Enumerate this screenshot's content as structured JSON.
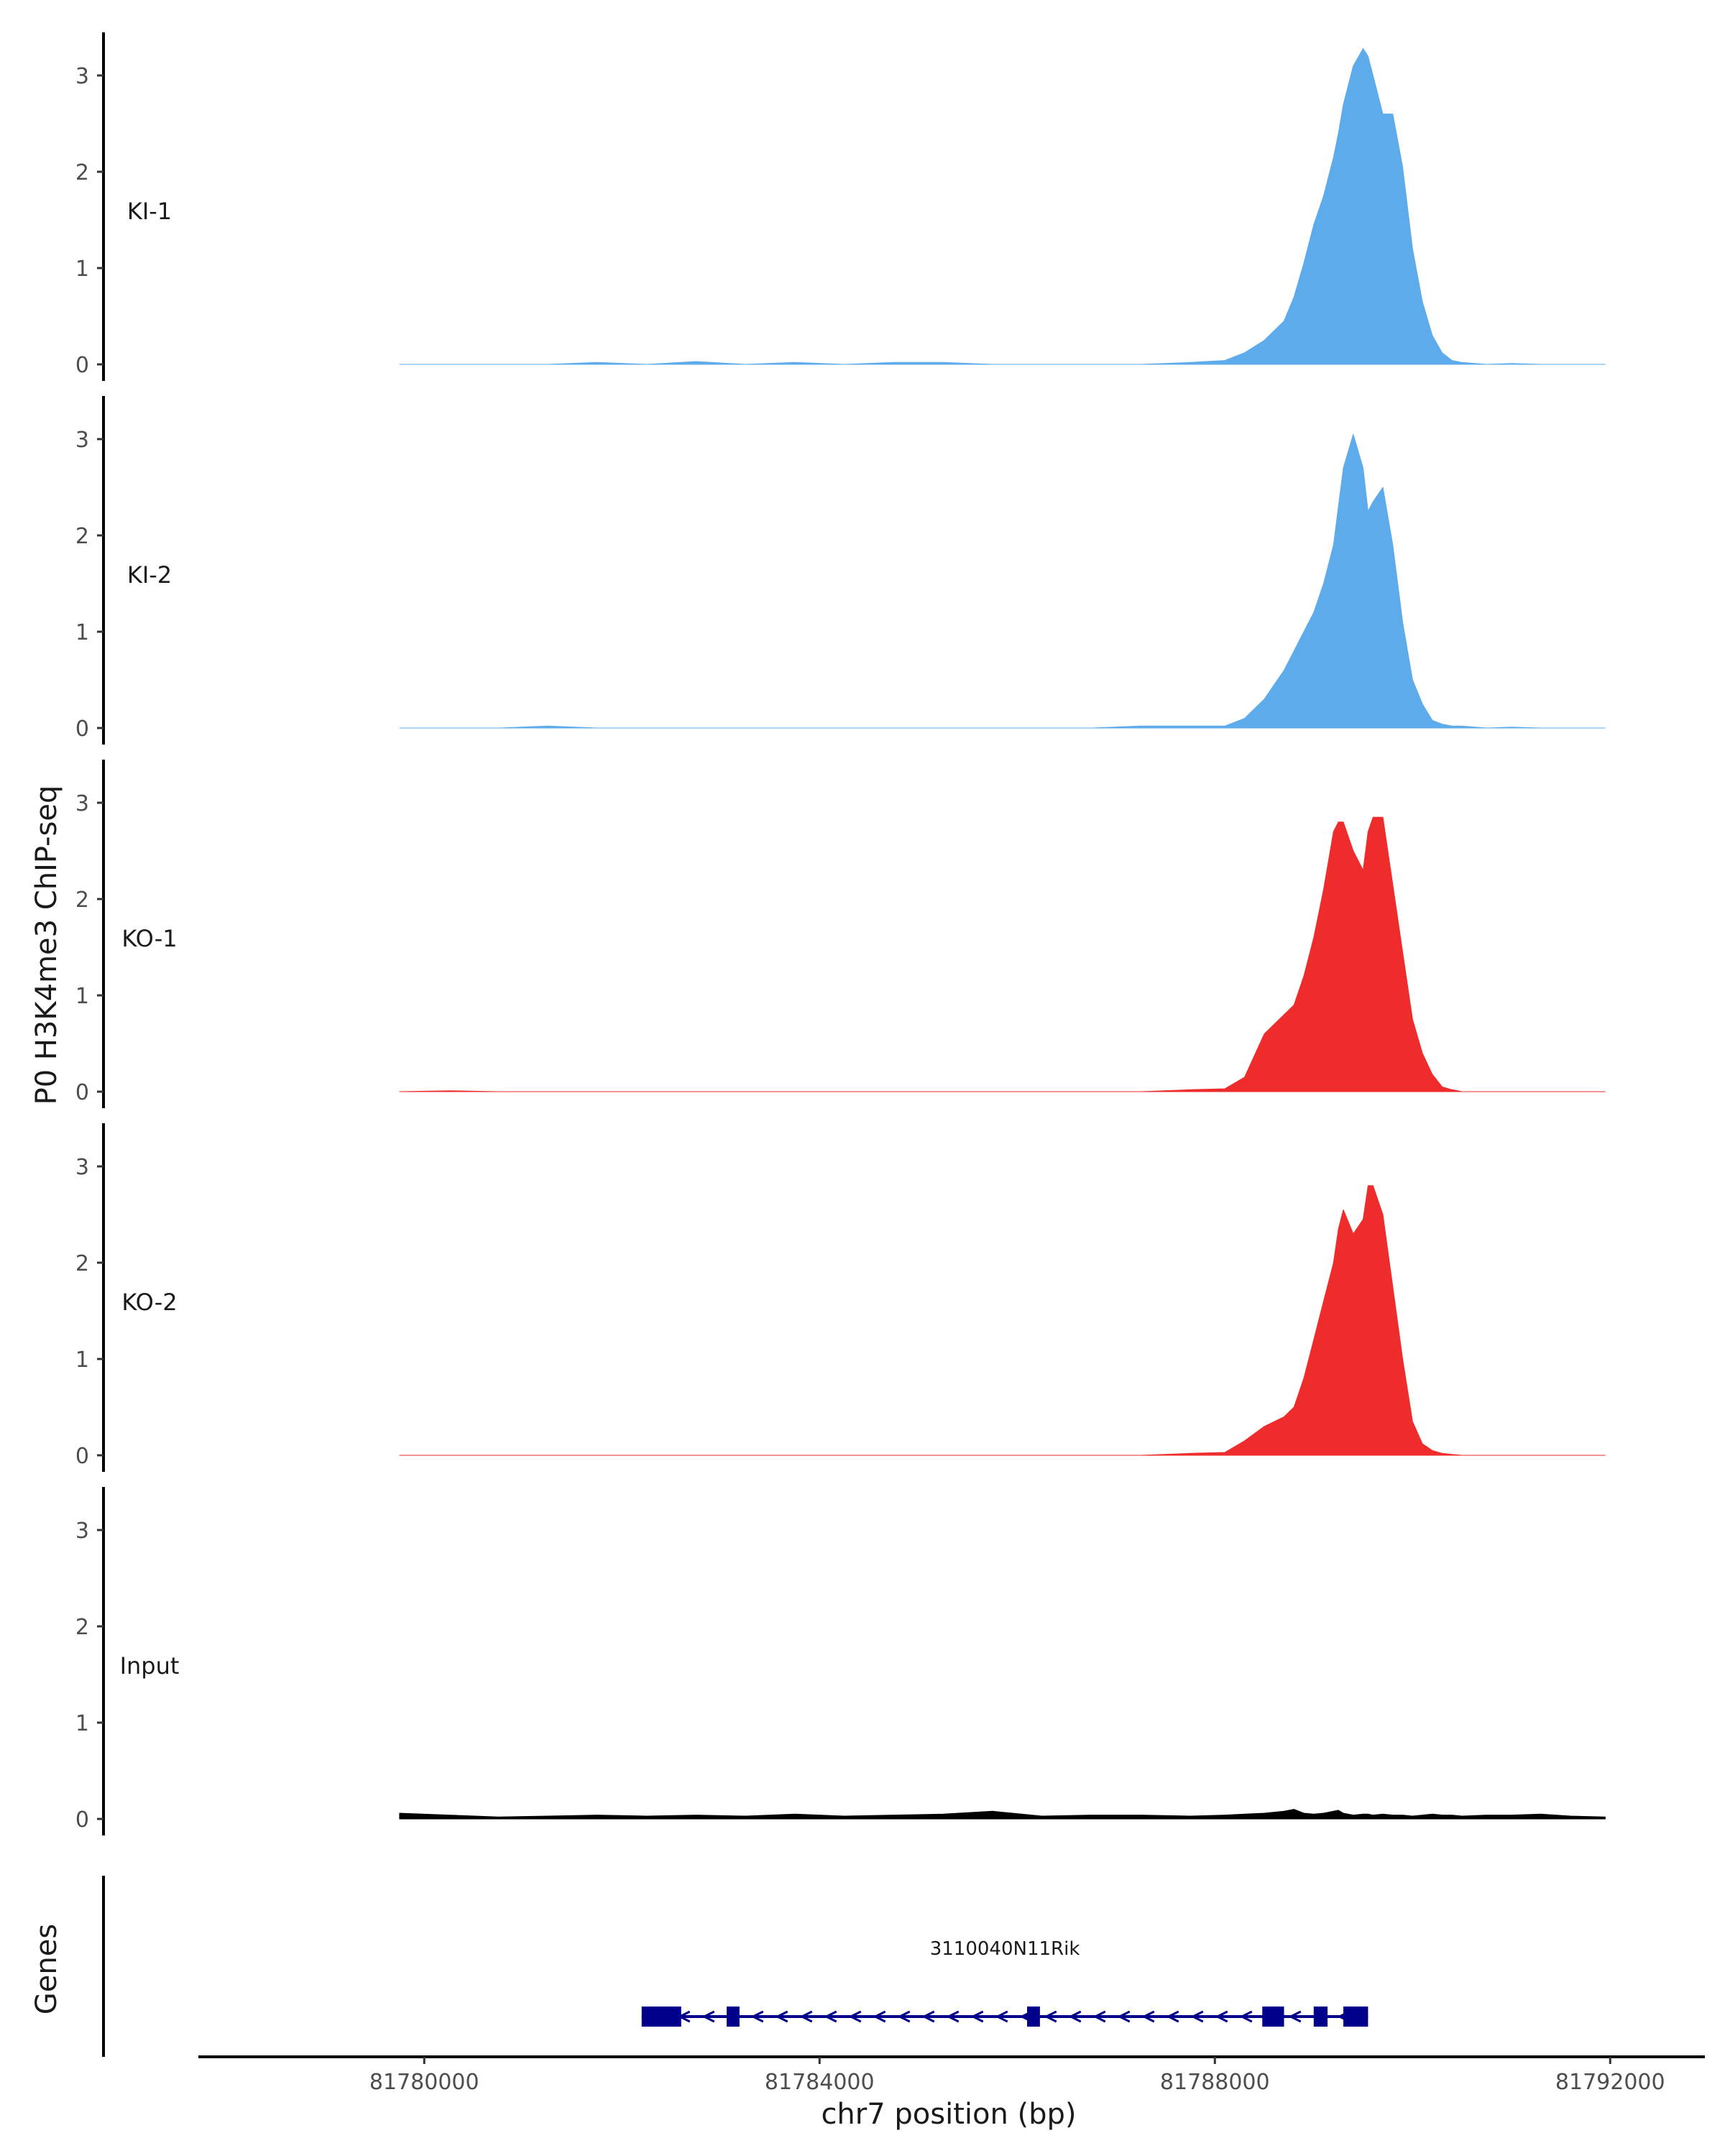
{
  "chart_data": {
    "type": "area",
    "ylabel": "P0 H3K4me3 ChIP-seq",
    "xlabel": "chr7 position (bp)",
    "gene_panel_label": "Genes",
    "xlim": [
      81777700,
      81792900
    ],
    "ylim": [
      -0.05,
      3.4
    ],
    "yticks": [
      0,
      1,
      2,
      3
    ],
    "xticks": [
      81780000,
      81784000,
      81788000,
      81792000
    ],
    "xtick_labels": [
      "81780000",
      "81784000",
      "81788000",
      "81792000"
    ],
    "grid": false,
    "series_x": [
      81779750,
      81780250,
      81780750,
      81781250,
      81781750,
      81782250,
      81782750,
      81783250,
      81783750,
      81784250,
      81784750,
      81785250,
      81785750,
      81786250,
      81786750,
      81787250,
      81787750,
      81788100,
      81788300,
      81788500,
      81788700,
      81788800,
      81788900,
      81789000,
      81789100,
      81789200,
      81789250,
      81789300,
      81789400,
      81789500,
      81789550,
      81789600,
      81789700,
      81789800,
      81789900,
      81790000,
      81790100,
      81790200,
      81790300,
      81790400,
      81790500,
      81790750,
      81791000,
      81791300,
      81791600,
      81791950
    ],
    "series": [
      {
        "name": "KI-1",
        "color": "#5EABEC",
        "values": [
          0.0,
          0.0,
          0.0,
          0.0,
          0.02,
          0.0,
          0.03,
          0.0,
          0.02,
          0.0,
          0.02,
          0.02,
          0.0,
          0.0,
          0.0,
          0.0,
          0.02,
          0.04,
          0.12,
          0.25,
          0.45,
          0.7,
          1.05,
          1.45,
          1.75,
          2.15,
          2.4,
          2.7,
          3.1,
          3.28,
          3.2,
          3.0,
          2.6,
          2.6,
          2.05,
          1.2,
          0.65,
          0.3,
          0.12,
          0.04,
          0.02,
          0.0,
          0.01,
          0.0,
          0.0,
          0.0
        ]
      },
      {
        "name": "KI-2",
        "color": "#5EABEC",
        "values": [
          0.0,
          0.0,
          0.0,
          0.02,
          0.0,
          0.0,
          0.0,
          0.0,
          0.0,
          0.0,
          0.0,
          0.0,
          0.0,
          0.0,
          0.0,
          0.02,
          0.02,
          0.02,
          0.1,
          0.3,
          0.6,
          0.8,
          1.0,
          1.2,
          1.5,
          1.9,
          2.3,
          2.7,
          3.05,
          2.7,
          2.25,
          2.35,
          2.5,
          1.9,
          1.1,
          0.5,
          0.25,
          0.08,
          0.04,
          0.02,
          0.02,
          0.0,
          0.01,
          0.0,
          0.0,
          0.0
        ]
      },
      {
        "name": "KO-1",
        "color": "#EE2C2C",
        "values": [
          0.0,
          0.01,
          0.0,
          0.0,
          0.0,
          0.0,
          0.0,
          0.0,
          0.0,
          0.0,
          0.0,
          0.0,
          0.0,
          0.0,
          0.0,
          0.0,
          0.02,
          0.03,
          0.15,
          0.6,
          0.8,
          0.9,
          1.2,
          1.6,
          2.1,
          2.7,
          2.8,
          2.8,
          2.5,
          2.3,
          2.7,
          2.85,
          2.85,
          2.15,
          1.45,
          0.75,
          0.4,
          0.18,
          0.05,
          0.02,
          0.0,
          0.0,
          0.0,
          0.0,
          0.0,
          0.0
        ]
      },
      {
        "name": "KO-2",
        "color": "#EE2C2C",
        "values": [
          0.0,
          0.0,
          0.0,
          0.0,
          0.0,
          0.0,
          0.0,
          0.0,
          0.0,
          0.0,
          0.0,
          0.0,
          0.0,
          0.0,
          0.0,
          0.0,
          0.02,
          0.03,
          0.15,
          0.3,
          0.4,
          0.5,
          0.8,
          1.2,
          1.6,
          2.0,
          2.35,
          2.55,
          2.3,
          2.45,
          2.8,
          2.8,
          2.5,
          1.75,
          1.0,
          0.35,
          0.12,
          0.05,
          0.02,
          0.01,
          0.0,
          0.0,
          0.0,
          0.0,
          0.0,
          0.0
        ]
      },
      {
        "name": "Input",
        "color": "#000000",
        "values": [
          0.06,
          0.04,
          0.02,
          0.03,
          0.04,
          0.03,
          0.04,
          0.03,
          0.05,
          0.03,
          0.04,
          0.05,
          0.08,
          0.03,
          0.04,
          0.04,
          0.03,
          0.04,
          0.05,
          0.06,
          0.08,
          0.1,
          0.06,
          0.05,
          0.06,
          0.08,
          0.09,
          0.06,
          0.04,
          0.05,
          0.05,
          0.04,
          0.05,
          0.04,
          0.04,
          0.03,
          0.04,
          0.05,
          0.04,
          0.04,
          0.03,
          0.04,
          0.04,
          0.05,
          0.03,
          0.02
        ]
      }
    ],
    "gene": {
      "name": "3110040N11Rik",
      "color": "#00008B",
      "start": 81782200,
      "end": 81789550,
      "strand": "-",
      "exons": [
        [
          81782200,
          81782600
        ],
        [
          81783060,
          81783190
        ],
        [
          81786100,
          81786230
        ],
        [
          81788480,
          81788700
        ],
        [
          81789000,
          81789140
        ],
        [
          81789300,
          81789550
        ]
      ]
    }
  }
}
